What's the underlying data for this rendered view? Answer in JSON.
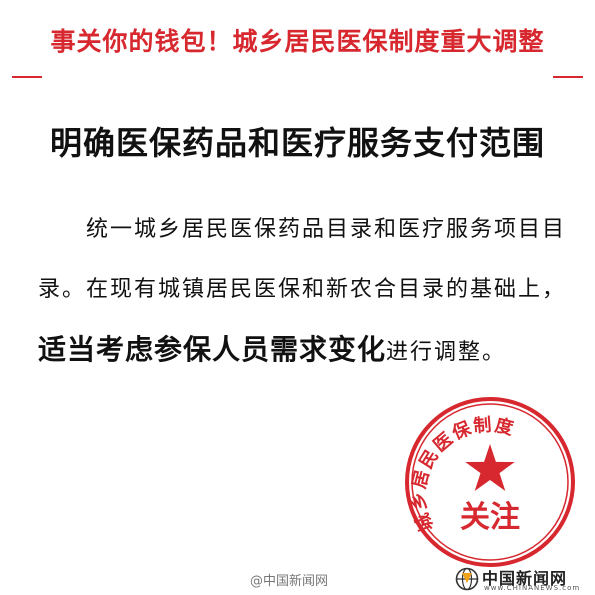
{
  "header": {
    "title": "事关你的钱包！城乡居民医保制度重大调整",
    "accent_color": "#d7282f"
  },
  "headline": "明确医保药品和医疗服务支付范围",
  "body": {
    "part1": "统一城乡居民医保药品目录和医疗服务项目目录。在现有城镇居民医保和新农合目录的基础上，",
    "emphasis": "适当考虑参保人员需求变化",
    "part2": "进行调整。"
  },
  "stamp": {
    "arc_text": "城乡居民医保制度",
    "center_text": "关注",
    "icon": "star-icon",
    "color": "#d7282f"
  },
  "watermark": {
    "weibo": "@中国新闻网",
    "logo_name": "中国新闻网",
    "logo_url": "www.CHINANEWS.com"
  }
}
